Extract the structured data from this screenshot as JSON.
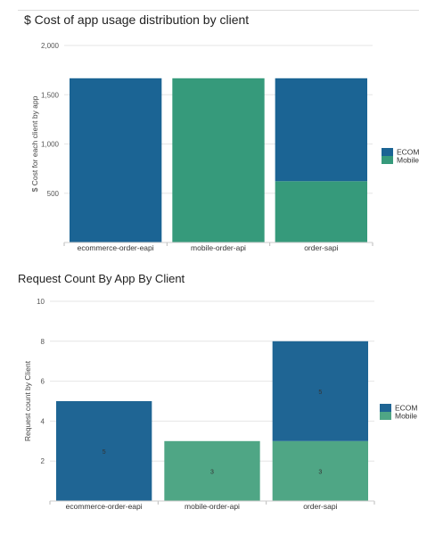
{
  "chart_data": [
    {
      "type": "bar",
      "stacked": true,
      "title": "$ Cost of app usage distribution by client",
      "xlabel": "",
      "ylabel": "$ Cost for each client by app",
      "categories": [
        "ecommerce-order-eapi",
        "mobile-order-api",
        "order-sapi"
      ],
      "series": [
        {
          "name": "ECOM",
          "color": "#1b6494",
          "values": [
            1667,
            0,
            1045
          ]
        },
        {
          "name": "Mobile",
          "color": "#369a7b",
          "values": [
            0,
            1667,
            622
          ]
        }
      ],
      "ylim": [
        0,
        2000
      ],
      "yticks": [
        500,
        1000,
        1500,
        2000
      ],
      "ytick_labels": [
        "500",
        "1,000",
        "1,500",
        "2,000"
      ],
      "grid": true,
      "legend": "right"
    },
    {
      "type": "bar",
      "stacked": true,
      "title": "Request Count By App By Client",
      "xlabel": "",
      "ylabel": "Request count by Client",
      "categories": [
        "ecommerce-order-eapi",
        "mobile-order-api",
        "order-sapi"
      ],
      "series": [
        {
          "name": "ECOM",
          "color": "#1f6594",
          "values": [
            5,
            0,
            5
          ],
          "labels": [
            "5",
            "",
            "5"
          ]
        },
        {
          "name": "Mobile",
          "color": "#4fa685",
          "values": [
            0,
            3,
            3
          ],
          "labels": [
            "",
            "3",
            "3"
          ]
        }
      ],
      "ylim": [
        0,
        10
      ],
      "yticks": [
        2,
        4,
        6,
        8,
        10
      ],
      "ytick_labels": [
        "2",
        "4",
        "6",
        "8",
        "10"
      ],
      "grid": true,
      "legend": "right"
    }
  ]
}
